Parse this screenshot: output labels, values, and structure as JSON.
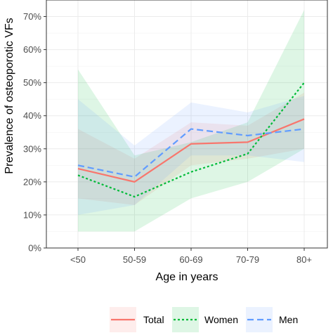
{
  "chart_data": {
    "type": "line",
    "title": "",
    "xlabel": "Age in years",
    "ylabel": "Prevalence of osteoporotic VFs",
    "categories": [
      "<50",
      "50-59",
      "60-69",
      "70-79",
      "80+"
    ],
    "ylim": [
      0,
      0.75
    ],
    "yticks": [
      0,
      0.1,
      0.2,
      0.3,
      0.4,
      0.5,
      0.6,
      0.7
    ],
    "ytick_labels": [
      "0%",
      "10%",
      "20%",
      "30%",
      "40%",
      "50%",
      "60%",
      "70%"
    ],
    "grid": true,
    "legend_position": "bottom",
    "series": [
      {
        "name": "Total",
        "color": "#f8766d",
        "dash": "solid",
        "values": [
          0.24,
          0.2,
          0.315,
          0.32,
          0.39
        ],
        "lower": [
          0.15,
          0.13,
          0.25,
          0.27,
          0.3
        ],
        "upper": [
          0.36,
          0.27,
          0.38,
          0.37,
          0.47
        ]
      },
      {
        "name": "Women",
        "color": "#00ba38",
        "dash": "dotted",
        "values": [
          0.22,
          0.155,
          0.23,
          0.285,
          0.5
        ],
        "lower": [
          0.05,
          0.05,
          0.15,
          0.2,
          0.3
        ],
        "upper": [
          0.54,
          0.28,
          0.32,
          0.38,
          0.72
        ]
      },
      {
        "name": "Men",
        "color": "#619cff",
        "dash": "dashed",
        "values": [
          0.25,
          0.215,
          0.36,
          0.34,
          0.36
        ],
        "lower": [
          0.1,
          0.13,
          0.28,
          0.28,
          0.26
        ],
        "upper": [
          0.45,
          0.31,
          0.44,
          0.41,
          0.46
        ]
      }
    ]
  }
}
